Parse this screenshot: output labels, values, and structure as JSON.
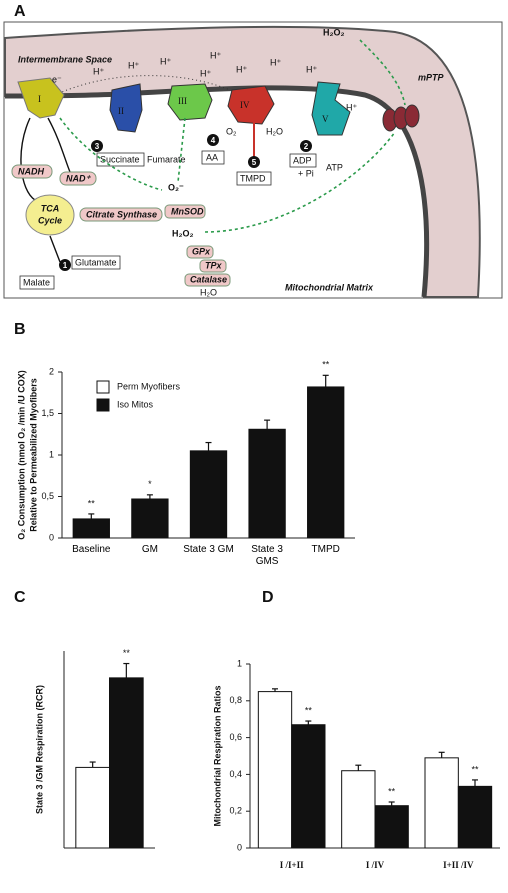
{
  "diagram": {
    "panel_label": "A",
    "space_label": "Intermembrane Space",
    "matrix_label": "Mitochondrial Matrix",
    "complexes": [
      "I",
      "II",
      "III",
      "IV",
      "V"
    ],
    "mptp": "mPTP",
    "electron": "e⁻",
    "protons": [
      "H⁺",
      "H⁺",
      "H⁺",
      "H⁺",
      "H⁺",
      "H⁺",
      "H⁺",
      "H⁺",
      "H⁺"
    ],
    "h2o2_out": "H₂O₂",
    "nadh": "NADH",
    "nad": "NAD⁺",
    "tca_lines": [
      "TCA",
      "Cycle"
    ],
    "citrate_synthase": "Citrate Synthase",
    "malate": "Malate",
    "glutamate": "Glutamate",
    "succinate": "Succinate",
    "fumarate": "Fumarate",
    "aa": "AA",
    "tmpd": "TMPD",
    "adp": "ADP",
    "pi": "+ Pi",
    "atp": "ATP",
    "o2": "O₂",
    "h2o_iv": "H₂O",
    "superoxide": "O₂⁻",
    "mnsod": "MnSOD",
    "h2o2": "H₂O₂",
    "gpx": "GPx",
    "tpx": "TPx",
    "catalase": "Catalase",
    "h2o_matrix": "H₂O",
    "steps": [
      "1",
      "2",
      "3",
      "4",
      "5"
    ]
  },
  "chart_data": [
    {
      "type": "bar",
      "panel_label": "B",
      "ylabel": [
        "O₂ Consumption (nmol O₂ /min /U COX)",
        "Relative to Permeabilized Myofibers"
      ],
      "categories": [
        "Baseline",
        "GM",
        "State 3 GM",
        "State 3 GMS",
        "TMPD"
      ],
      "series": [
        {
          "name": "Perm Myofibers",
          "color": "#ffffff",
          "values": [
            null,
            null,
            null,
            null,
            null
          ]
        },
        {
          "name": "Iso Mitos",
          "color": "#111111",
          "values": [
            0.23,
            0.47,
            1.05,
            1.31,
            1.82
          ],
          "errors": [
            0.06,
            0.05,
            0.1,
            0.11,
            0.14
          ],
          "significance": [
            "**",
            "*",
            null,
            null,
            "**"
          ]
        }
      ],
      "ylim": [
        0,
        2
      ],
      "yticks": [
        0,
        {
          "value": 0.5,
          "label": "0,5"
        },
        1,
        {
          "value": 1.5,
          "label": "1,5"
        },
        2
      ],
      "grid": false,
      "legend": "upper left"
    },
    {
      "type": "bar",
      "panel_label": "C",
      "ylabel": [
        "State 3 /GM Respiration (RCR)"
      ],
      "categories": [
        null
      ],
      "series": [
        {
          "color": "#ffffff",
          "values": [
            4.5
          ],
          "errors": [
            0.3
          ]
        },
        {
          "color": "#111111",
          "values": [
            9.5
          ],
          "errors": [
            0.8
          ],
          "significance": [
            "**"
          ]
        }
      ],
      "ylim": [
        0,
        11
      ],
      "grid": false
    },
    {
      "type": "bar",
      "panel_label": "D",
      "ylabel": [
        "Mitochondrial Respiration Ratios"
      ],
      "categories": [
        "I /I+II",
        "I /IV",
        "I+II /IV"
      ],
      "series": [
        {
          "color": "#ffffff",
          "values": [
            0.85,
            0.42,
            0.49
          ],
          "errors": [
            0.015,
            0.03,
            0.03
          ]
        },
        {
          "color": "#111111",
          "values": [
            0.67,
            0.23,
            0.335
          ],
          "errors": [
            0.02,
            0.02,
            0.035
          ],
          "significance": [
            "**",
            "**",
            "**"
          ]
        }
      ],
      "ylim": [
        0,
        1
      ],
      "yticks": [
        0,
        {
          "value": 0.2,
          "label": "0,2"
        },
        {
          "value": 0.4,
          "label": "0,4"
        },
        {
          "value": 0.6,
          "label": "0,6"
        },
        {
          "value": 0.8,
          "label": "0,8"
        },
        1
      ],
      "grid": false
    }
  ]
}
